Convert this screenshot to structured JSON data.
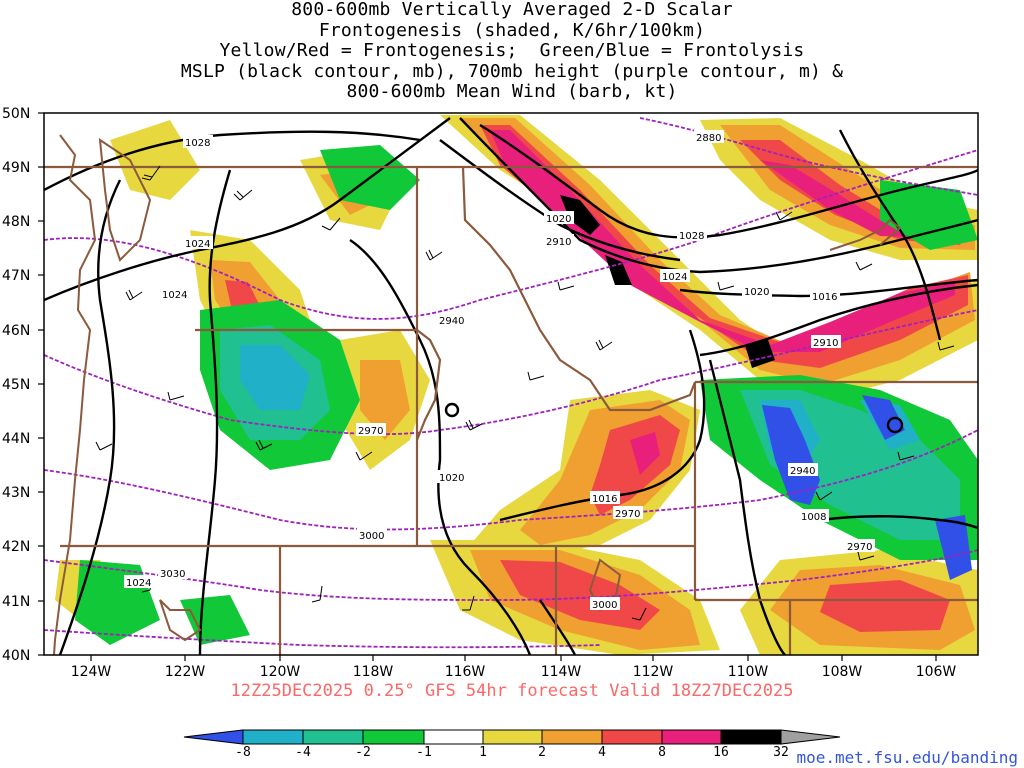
{
  "title_lines": [
    "800-600mb Vertically Averaged 2-D Scalar",
    "Frontogenesis (shaded, K/6hr/100km)",
    "Yellow/Red = Frontogenesis;  Green/Blue = Frontolysis",
    "MSLP (black contour, mb), 700mb height (purple contour, m) &",
    "800-600mb Mean Wind (barb, kt)"
  ],
  "footer": "12Z25DEC2025 0.25° GFS 54hr forecast Valid 18Z27DEC2025",
  "url": "moe.met.fsu.edu/banding",
  "map": {
    "lat_range": [
      40,
      50
    ],
    "lon_range": [
      -125,
      -105
    ],
    "lat_ticks": [
      "40N",
      "41N",
      "42N",
      "43N",
      "44N",
      "45N",
      "46N",
      "47N",
      "48N",
      "49N",
      "50N"
    ],
    "lon_ticks": [
      "124W",
      "122W",
      "120W",
      "118W",
      "116W",
      "114W",
      "112W",
      "110W",
      "108W",
      "106W"
    ],
    "mslp_labels": [
      "1028",
      "1024",
      "1024",
      "1020",
      "1028",
      "1024",
      "1020",
      "1016",
      "1020",
      "1016",
      "1008",
      "1024"
    ],
    "height_labels": [
      "2880",
      "2910",
      "2940",
      "2910",
      "2970",
      "2940",
      "2970",
      "3000",
      "3030",
      "2970",
      "3000"
    ],
    "colors": {
      "mslp_contour": "#000000",
      "height_contour": "#a020c0",
      "border": "#8b5a3c",
      "coast": "#8b5a3c"
    }
  },
  "colorbar": {
    "labels": [
      "-8",
      "-4",
      "-2",
      "-1",
      "1",
      "2",
      "4",
      "8",
      "16",
      "32"
    ],
    "colors": [
      "#3050e8",
      "#20b0c8",
      "#20c090",
      "#10c838",
      "#ffffff",
      "#e8d840",
      "#f0a030",
      "#f04848",
      "#e8207c",
      "#000000",
      "#a0a0a0"
    ]
  }
}
